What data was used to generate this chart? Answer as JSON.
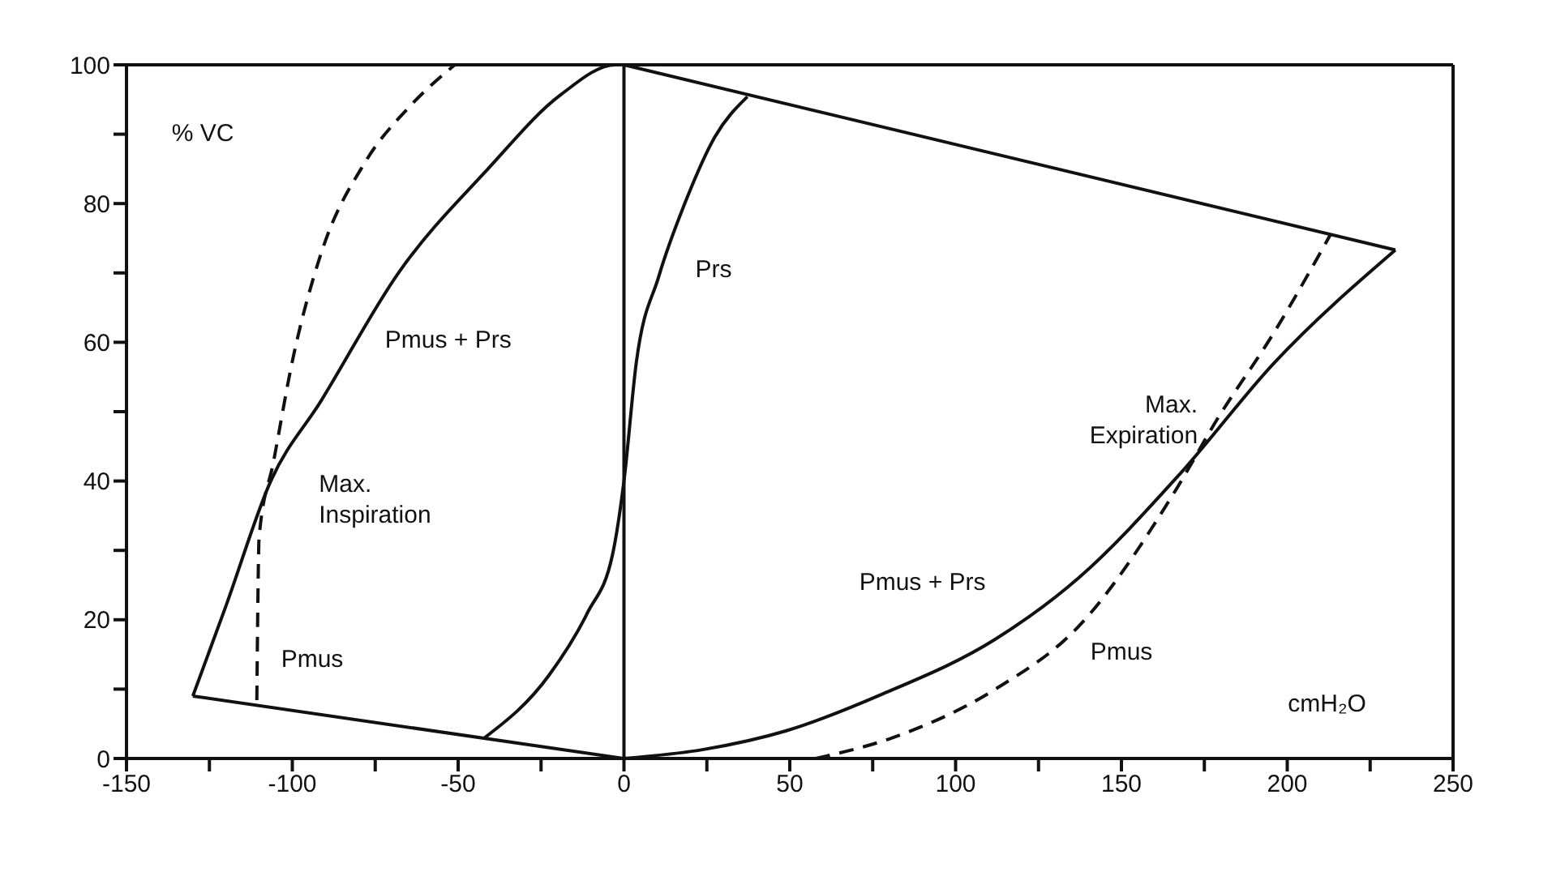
{
  "chart_data": {
    "type": "line",
    "xlabel": "cmH₂O",
    "ylabel": "% VC",
    "xlim": [
      -150,
      250
    ],
    "ylim": [
      0,
      100
    ],
    "xticks": [
      -150,
      {
        "value": -125,
        "label": null
      },
      -100,
      {
        "value": -75,
        "label": null
      },
      -50,
      {
        "value": -25,
        "label": null
      },
      0,
      {
        "value": 25,
        "label": null
      },
      50,
      {
        "value": 75,
        "label": null
      },
      100,
      {
        "value": 125,
        "label": null
      },
      150,
      {
        "value": 175,
        "label": null
      },
      200,
      {
        "value": 225,
        "label": null
      },
      250
    ],
    "yticks": [
      0,
      {
        "value": 10,
        "label": null
      },
      20,
      {
        "value": 30,
        "label": null
      },
      40,
      {
        "value": 50,
        "label": null
      },
      60,
      {
        "value": 70,
        "label": null
      },
      80,
      {
        "value": 90,
        "label": null
      },
      100
    ],
    "series": [
      {
        "name": "Pmus + Prs",
        "color": "#111111",
        "line_style": "solid",
        "x": [
          -130,
          -120,
          -106.5,
          -91.4,
          -68,
          -41,
          -19.3,
          -2.5,
          0
        ],
        "values": [
          9,
          22,
          40,
          51.5,
          70,
          85,
          95.6,
          100,
          100
        ]
      },
      {
        "name": "Pmus",
        "color": "#111111",
        "line_style": "dashed",
        "x": [
          -110.7,
          -110,
          -105.7,
          -99.8,
          -91.4,
          -78,
          -64.6,
          -51
        ],
        "values": [
          8.4,
          32,
          42.7,
          57.7,
          72.7,
          86,
          94,
          100
        ]
      },
      {
        "name": "Prs",
        "color": "#111111",
        "line_style": "solid",
        "x": [
          -42,
          -22.6,
          -11,
          -3.4,
          0,
          3.7,
          10.5,
          19,
          27.4,
          37.2
        ],
        "values": [
          3,
          12,
          21,
          29.5,
          40,
          57,
          69.5,
          80.8,
          89.6,
          95.4
        ]
      },
      {
        "name": "Pmus + Prs",
        "color": "#111111",
        "line_style": "solid",
        "x": [
          0,
          24,
          49,
          78,
          112,
          137,
          167.6,
          196,
          232.6
        ],
        "values": [
          0,
          1.3,
          4,
          9.3,
          17.2,
          26,
          41,
          57,
          73.3
        ]
      },
      {
        "name": "Pmus",
        "color": "#111111",
        "line_style": "dashed",
        "x": [
          57.8,
          81,
          112,
          137,
          166,
          179,
          196,
          213
        ],
        "values": [
          0,
          3,
          10,
          19,
          38.4,
          49,
          61.4,
          75.5
        ]
      },
      {
        "color": "#111111",
        "line_style": "solid",
        "x": [
          -130,
          0
        ],
        "values": [
          9,
          0
        ]
      },
      {
        "color": "#111111",
        "line_style": "solid",
        "x": [
          0,
          232.6
        ],
        "values": [
          100,
          73.3
        ]
      }
    ],
    "ref_lines": [
      {
        "axis": "x",
        "value": 0,
        "color": "#111111"
      }
    ],
    "annotations": [
      "Max. Inspiration",
      "Max. Expiration"
    ],
    "marker": "none",
    "grid": false
  }
}
